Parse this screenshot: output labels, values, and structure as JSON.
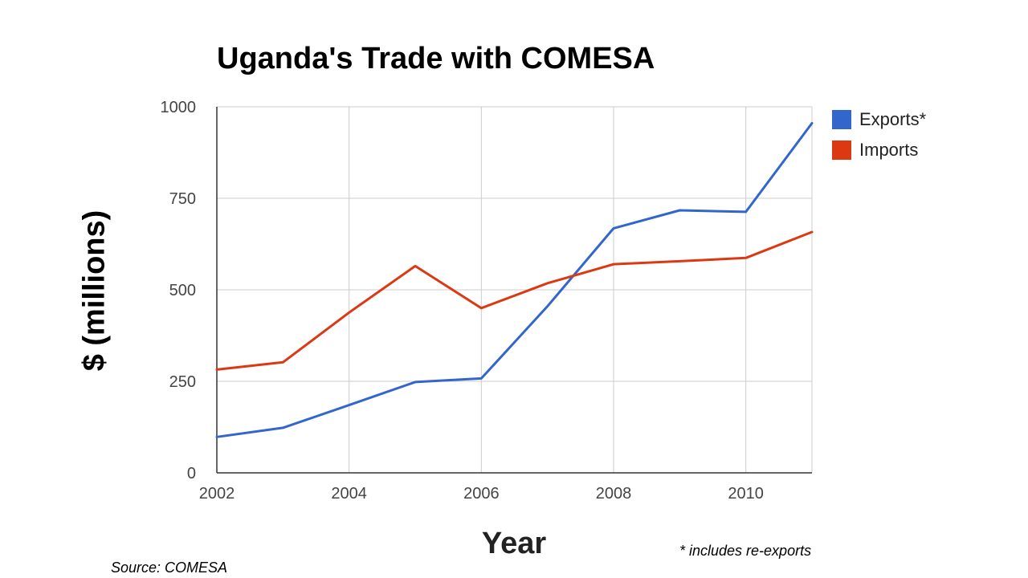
{
  "chart_data": {
    "type": "line",
    "title": "Uganda's Trade with COMESA",
    "xlabel": "Year",
    "ylabel": "$ (millions)",
    "x": [
      2002,
      2003,
      2004,
      2005,
      2006,
      2007,
      2008,
      2009,
      2010,
      2011
    ],
    "xticks": [
      "2002",
      "2004",
      "2006",
      "2008",
      "2010"
    ],
    "yticks": [
      "0",
      "250",
      "500",
      "750",
      "1000"
    ],
    "ylim": [
      0,
      1000
    ],
    "xlim": [
      2002,
      2011
    ],
    "grid": true,
    "legend_position": "right",
    "series": [
      {
        "name": "Exports*",
        "color": "#3366cc",
        "values": [
          98,
          123,
          185,
          248,
          258,
          455,
          668,
          717,
          713,
          955
        ]
      },
      {
        "name": "Imports",
        "color": "#dc3912",
        "values": [
          282,
          302,
          438,
          565,
          450,
          518,
          570,
          578,
          587,
          658
        ]
      }
    ],
    "footnote": "* includes re-exports",
    "source": "Source: COMESA"
  }
}
